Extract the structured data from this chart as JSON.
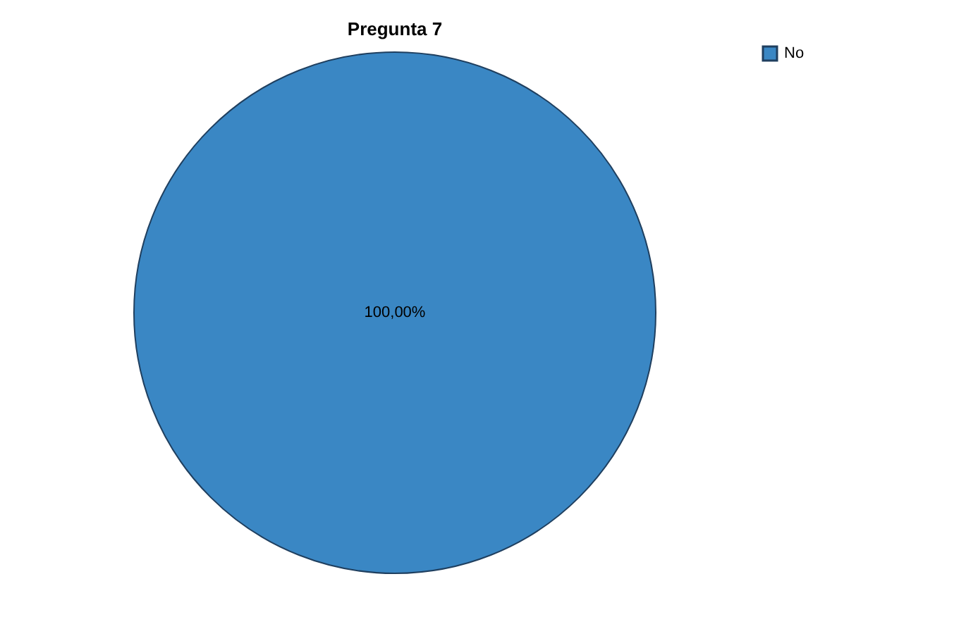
{
  "chart_data": {
    "type": "pie",
    "title": "Pregunta 7",
    "categories": [
      "No"
    ],
    "values": [
      100
    ],
    "colors": [
      "#3a87c4"
    ],
    "value_labels": [
      "100,00%"
    ],
    "legend": "top right"
  }
}
